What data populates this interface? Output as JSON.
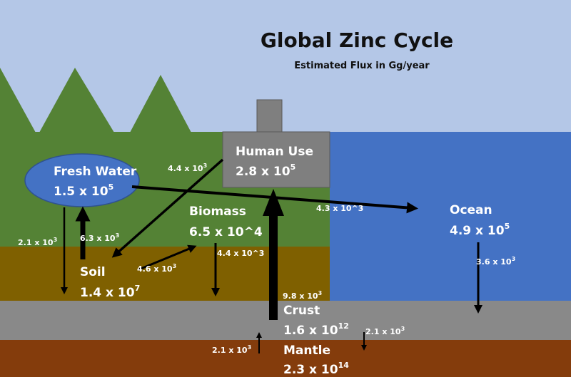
{
  "title": "Global Zinc Cycle",
  "subtitle": "Estimated Flux in Gg/year",
  "colors": {
    "sky": "#b4c7e7",
    "land": "#548235",
    "ocean": "#4472c4",
    "soil": "#7f6000",
    "crust": "#898989",
    "mantle": "#843c0c",
    "human_use": "#7f7f7f",
    "fresh_water": "#4472c4"
  },
  "reservoirs": {
    "fresh_water": {
      "name": "Fresh Water",
      "base": "1.5 x 10",
      "exp": "5"
    },
    "human_use": {
      "name": "Human Use",
      "base": "2.8 x 10",
      "exp": "5"
    },
    "biomass": {
      "name": "Biomass",
      "value": "6.5 x 10^4"
    },
    "ocean": {
      "name": "Ocean",
      "base": "4.9 x 10",
      "exp": "5"
    },
    "soil": {
      "name": "Soil",
      "base": "1.4 x 10",
      "exp": "7"
    },
    "crust": {
      "name": "Crust",
      "base": "1.6 x 10",
      "exp": "12"
    },
    "mantle": {
      "name": "Mantle",
      "base": "2.3 x 10",
      "exp": "14"
    }
  },
  "fluxes": {
    "human_to_soil": {
      "base": "4.4 x 10",
      "exp": "3"
    },
    "freshwater_to_ocean": {
      "value": "4.3 x 10^3"
    },
    "freshwater_to_crust": {
      "base": "2.1 x 10",
      "exp": "3"
    },
    "soil_to_freshwater": {
      "base": "6.3 x 10",
      "exp": "3"
    },
    "soil_to_biomass": {
      "base": "4.6 x 10",
      "exp": "3"
    },
    "biomass_to_crust": {
      "value": "4.4 x 10^3"
    },
    "crust_to_human": {
      "base": "9.8 x 10",
      "exp": "3"
    },
    "ocean_to_crust": {
      "base": "3.6 x 10",
      "exp": "3"
    },
    "mantle_to_crust": {
      "base": "2.1 x 10",
      "exp": "3"
    },
    "crust_to_mantle": {
      "base": "2.1 x 10",
      "exp": "3"
    }
  }
}
